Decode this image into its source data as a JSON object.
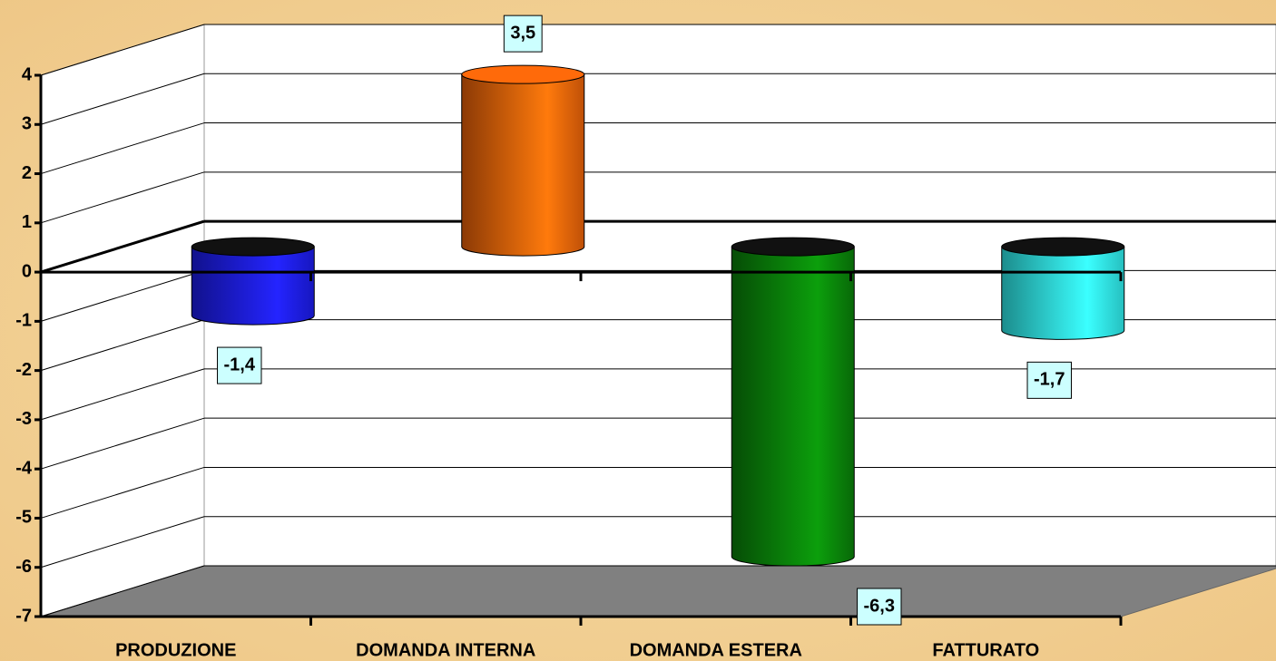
{
  "chart_data": {
    "type": "bar3d",
    "categories": [
      "PRODUZIONE",
      "DOMANDA INTERNA",
      "DOMANDA ESTERA",
      "FATTURATO"
    ],
    "values": [
      -1.4,
      3.5,
      -6.3,
      -1.7
    ],
    "value_labels": [
      "-1,4",
      "3,5",
      "-6,3",
      "-1,7"
    ],
    "colors": [
      "#1f1fff",
      "#ff6a0a",
      "#0a8a0a",
      "#33ffff"
    ],
    "ylim": [
      -7,
      4
    ],
    "yticks": [
      4,
      3,
      2,
      1,
      0,
      -1,
      -2,
      -3,
      -4,
      -5,
      -6,
      -7
    ],
    "grid": true
  }
}
